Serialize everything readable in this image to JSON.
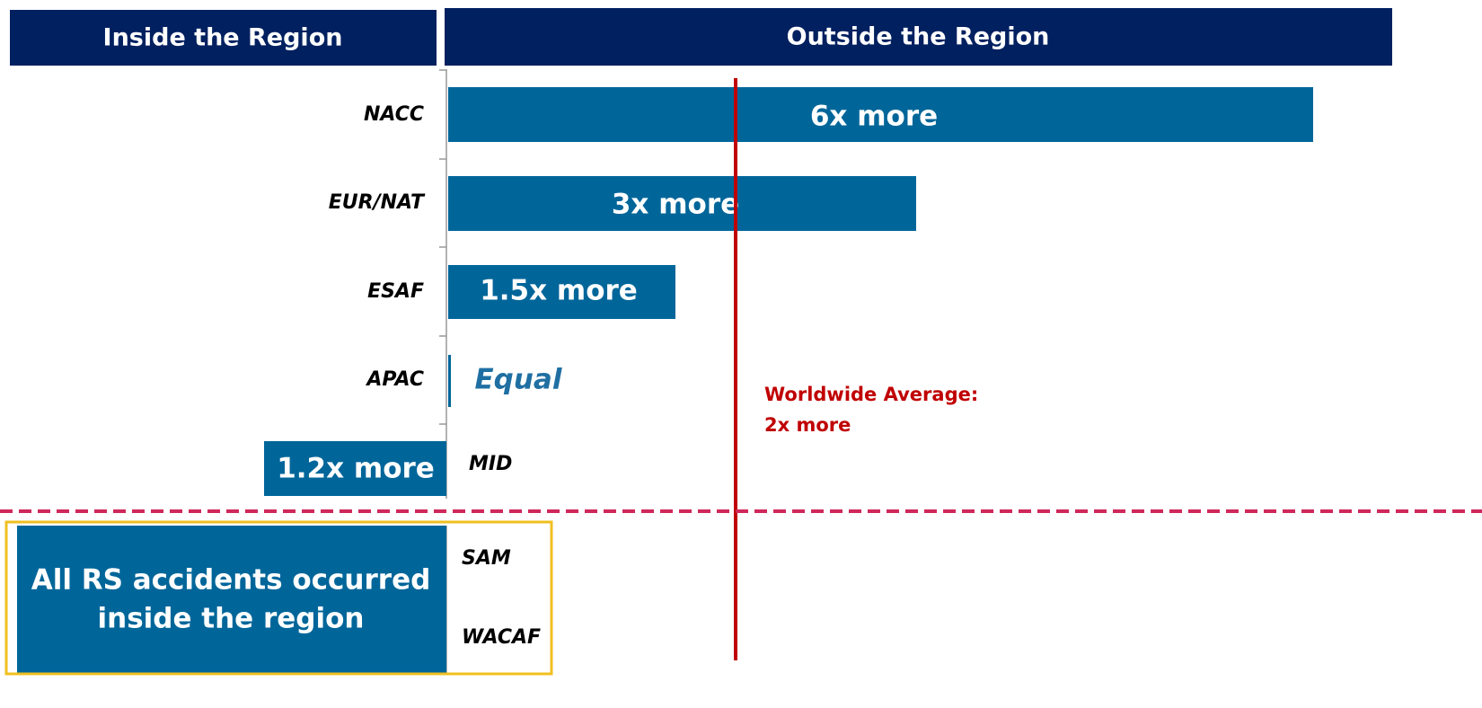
{
  "header": {
    "inside": "Inside the Region",
    "outside": "Outside the Region"
  },
  "rows": [
    {
      "region": "NACC",
      "label": "6x more"
    },
    {
      "region": "EUR/NAT",
      "label": "3x more"
    },
    {
      "region": "ESAF",
      "label": "1.5x more"
    },
    {
      "region": "APAC",
      "label": "Equal"
    },
    {
      "region": "MID",
      "label": "1.2x more"
    }
  ],
  "average": {
    "line1": "Worldwide Average:",
    "line2": "2x more"
  },
  "inside_box": {
    "line1": "All RS accidents occurred",
    "line2": "inside the region",
    "regions": [
      "SAM",
      "WACAF"
    ]
  }
}
